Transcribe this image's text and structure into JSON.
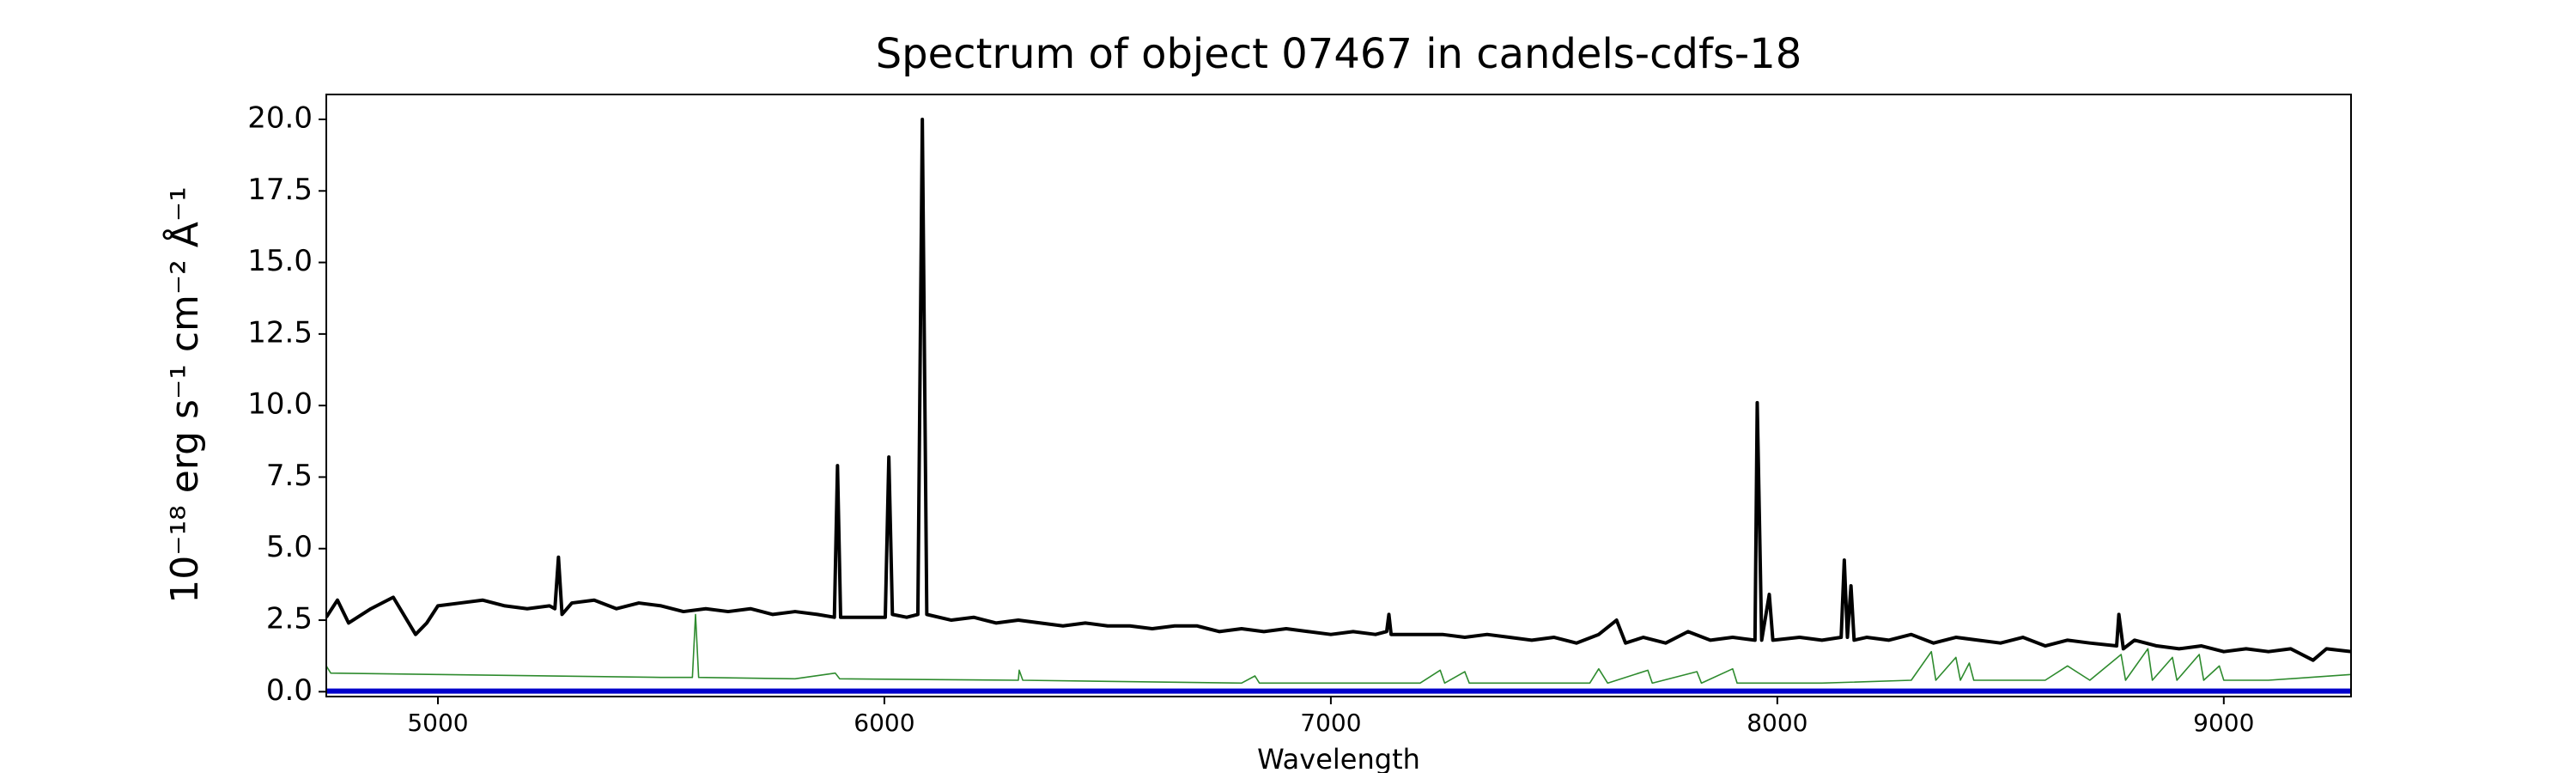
{
  "chart_data": {
    "type": "line",
    "title": "Spectrum of object 07467 in candels-cdfs-18",
    "xlabel": "Wavelength",
    "ylabel": "10⁻¹⁸ erg s⁻¹ cm⁻² Å⁻¹",
    "xlim": [
      4750,
      9285
    ],
    "ylim": [
      -0.17,
      20.87
    ],
    "xticks": [
      5000,
      6000,
      7000,
      8000,
      9000
    ],
    "yticks": [
      {
        "value": 0,
        "label": "0.0"
      },
      2.5,
      {
        "value": 5,
        "label": "5.0"
      },
      7.5,
      {
        "value": 10,
        "label": "10.0"
      },
      12.5,
      {
        "value": 15,
        "label": "15.0"
      },
      17.5,
      {
        "value": 20,
        "label": "20.0"
      }
    ],
    "series": [
      {
        "color": "#000000",
        "width": 4,
        "x": [
          4750,
          4775,
          4800,
          4850,
          4900,
          4950,
          4975,
          5000,
          5050,
          5100,
          5150,
          5200,
          5250,
          5262,
          5270,
          5278,
          5300,
          5350,
          5400,
          5450,
          5500,
          5550,
          5600,
          5650,
          5700,
          5750,
          5800,
          5850,
          5888,
          5895,
          5902,
          5950,
          6002,
          6010,
          6018,
          6050,
          6075,
          6085,
          6095,
          6150,
          6200,
          6250,
          6300,
          6350,
          6400,
          6450,
          6500,
          6550,
          6600,
          6650,
          6700,
          6750,
          6800,
          6850,
          6900,
          6950,
          7000,
          7050,
          7100,
          7125,
          7130,
          7135,
          7200,
          7250,
          7300,
          7350,
          7400,
          7450,
          7500,
          7550,
          7600,
          7640,
          7660,
          7700,
          7750,
          7800,
          7850,
          7900,
          7950,
          7955,
          7965,
          7982,
          7990,
          8050,
          8100,
          8143,
          8150,
          8157,
          8165,
          8172,
          8200,
          8250,
          8300,
          8350,
          8400,
          8450,
          8500,
          8550,
          8600,
          8650,
          8700,
          8760,
          8765,
          8775,
          8800,
          8850,
          8900,
          8950,
          9000,
          9050,
          9100,
          9150,
          9200,
          9230,
          9285
        ],
        "values": [
          2.6,
          3.2,
          2.4,
          2.9,
          3.3,
          2.0,
          2.4,
          3.0,
          3.1,
          3.2,
          3.0,
          2.9,
          3.0,
          2.9,
          4.7,
          2.7,
          3.1,
          3.2,
          2.9,
          3.1,
          3.0,
          2.8,
          2.9,
          2.8,
          2.9,
          2.7,
          2.8,
          2.7,
          2.6,
          7.9,
          2.6,
          2.6,
          2.6,
          8.2,
          2.7,
          2.6,
          2.7,
          20.0,
          2.7,
          2.5,
          2.6,
          2.4,
          2.5,
          2.4,
          2.3,
          2.4,
          2.3,
          2.3,
          2.2,
          2.3,
          2.3,
          2.1,
          2.2,
          2.1,
          2.2,
          2.1,
          2.0,
          2.1,
          2.0,
          2.1,
          2.7,
          2.0,
          2.0,
          2.0,
          1.9,
          2.0,
          1.9,
          1.8,
          1.9,
          1.7,
          2.0,
          2.5,
          1.7,
          1.9,
          1.7,
          2.1,
          1.8,
          1.9,
          1.8,
          10.1,
          1.8,
          3.4,
          1.8,
          1.9,
          1.8,
          1.9,
          4.6,
          1.9,
          3.7,
          1.8,
          1.9,
          1.8,
          2.0,
          1.7,
          1.9,
          1.8,
          1.7,
          1.9,
          1.6,
          1.8,
          1.7,
          1.6,
          2.7,
          1.5,
          1.8,
          1.6,
          1.5,
          1.6,
          1.4,
          1.5,
          1.4,
          1.5,
          1.1,
          1.5,
          1.4
        ]
      },
      {
        "color": "#2e8b2e",
        "width": 1.6,
        "x": [
          4750,
          4760,
          5000,
          5500,
          5570,
          5577,
          5584,
          5800,
          5890,
          5900,
          6300,
          6302,
          6310,
          6800,
          6830,
          6840,
          7200,
          7245,
          7255,
          7300,
          7310,
          7580,
          7600,
          7620,
          7710,
          7720,
          7820,
          7830,
          7900,
          7910,
          8100,
          8300,
          8345,
          8355,
          8400,
          8410,
          8430,
          8440,
          8600,
          8650,
          8700,
          8770,
          8780,
          8830,
          8840,
          8885,
          8895,
          8945,
          8955,
          8990,
          9000,
          9100,
          9285
        ],
        "values": [
          0.9,
          0.65,
          0.6,
          0.5,
          0.5,
          2.7,
          0.5,
          0.45,
          0.65,
          0.45,
          0.4,
          0.75,
          0.4,
          0.3,
          0.55,
          0.3,
          0.3,
          0.75,
          0.3,
          0.7,
          0.3,
          0.3,
          0.8,
          0.3,
          0.75,
          0.3,
          0.7,
          0.3,
          0.8,
          0.3,
          0.3,
          0.4,
          1.4,
          0.4,
          1.2,
          0.4,
          1.0,
          0.4,
          0.4,
          0.9,
          0.4,
          1.3,
          0.4,
          1.5,
          0.4,
          1.2,
          0.4,
          1.3,
          0.4,
          0.9,
          0.4,
          0.4,
          0.6
        ]
      },
      {
        "color": "#0000cc",
        "width": 6,
        "x": [
          4750,
          9285
        ],
        "values": [
          0.02,
          0.02
        ]
      }
    ]
  }
}
